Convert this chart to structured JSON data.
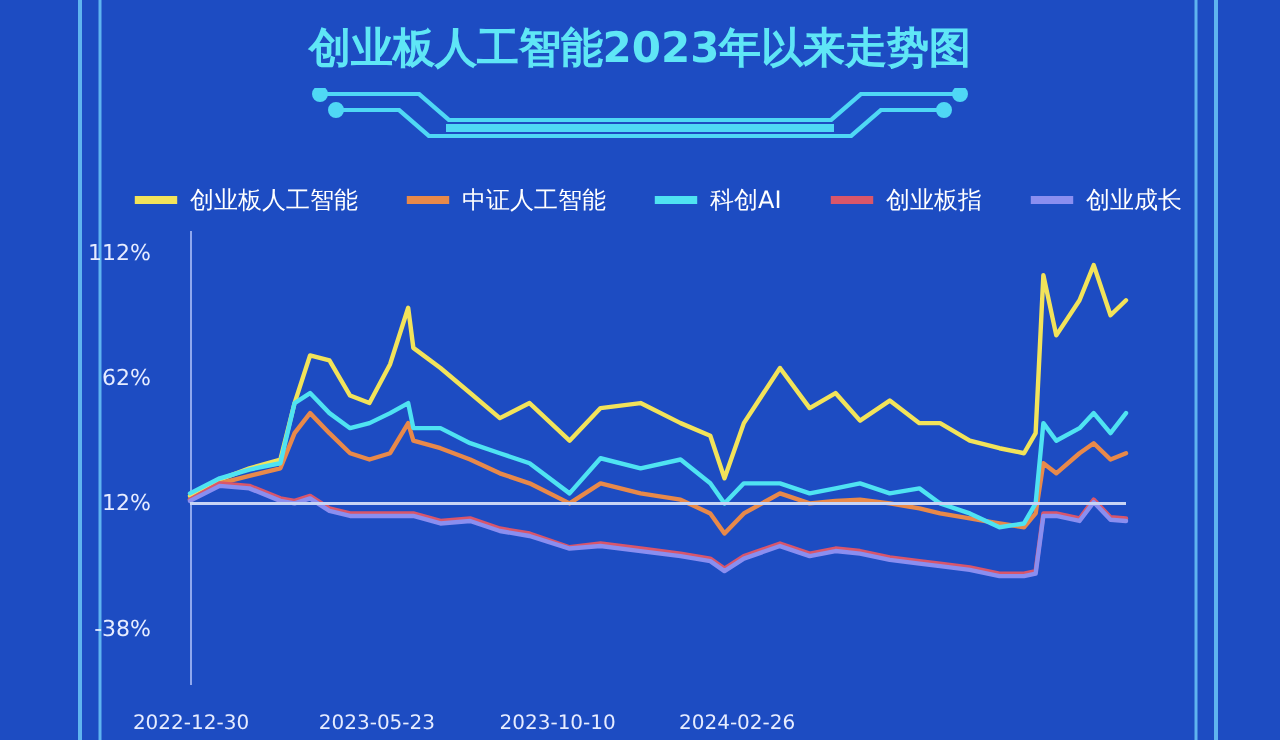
{
  "chart_data": {
    "type": "line",
    "title": "创业板人工智能2023年以来走势图",
    "x": [
      "2022-12-30",
      "2023-01-22",
      "2023-02-14",
      "2023-03-10",
      "2023-03-21",
      "2023-04-02",
      "2023-04-17",
      "2023-05-03",
      "2023-05-18",
      "2023-06-03",
      "2023-06-17",
      "2023-06-21",
      "2023-07-12",
      "2023-08-04",
      "2023-08-27",
      "2023-09-19",
      "2023-10-20",
      "2023-11-13",
      "2023-12-14",
      "2024-01-14",
      "2024-02-06",
      "2024-02-17",
      "2024-03-03",
      "2024-03-31",
      "2024-04-23",
      "2024-05-13",
      "2024-06-01",
      "2024-06-24",
      "2024-07-17",
      "2024-08-02",
      "2024-08-25",
      "2024-09-17",
      "2024-10-06",
      "2024-10-15",
      "2024-10-21",
      "2024-10-31",
      "2024-11-18",
      "2024-11-29",
      "2024-12-12",
      "2024-12-24"
    ],
    "series": [
      {
        "name": "创业板人工智能",
        "color": "#f2e35a",
        "values": [
          15,
          21.5,
          26,
          29.5,
          52,
          71,
          69,
          55,
          52,
          67.5,
          90,
          74,
          66,
          56,
          46,
          52,
          37,
          50,
          52,
          44,
          39,
          22,
          44,
          66,
          50,
          56,
          45,
          53,
          44,
          44,
          37,
          34,
          32,
          40,
          103,
          79,
          93,
          107,
          87,
          93
        ]
      },
      {
        "name": "中证人工智能",
        "color": "#e8894a",
        "values": [
          13.5,
          20,
          23,
          26,
          40,
          48,
          40,
          32,
          29.5,
          32,
          44,
          37,
          34,
          29.5,
          24,
          20,
          12,
          20,
          16,
          13.5,
          8,
          0,
          8,
          16,
          12,
          13,
          13.5,
          12,
          10,
          8,
          6,
          4,
          2.5,
          8,
          28,
          24,
          32,
          36,
          29.5,
          32
        ]
      },
      {
        "name": "科创AI",
        "color": "#4fe3f2",
        "values": [
          16,
          22,
          25.5,
          28,
          52,
          56,
          48,
          42,
          44,
          48,
          52,
          42,
          42,
          36,
          32,
          28,
          16,
          30,
          26,
          29.5,
          20,
          12,
          20,
          20,
          16,
          18,
          20,
          16,
          18,
          12,
          8,
          2.5,
          4,
          12,
          44,
          37,
          42,
          48,
          40,
          48
        ]
      },
      {
        "name": "创业板指",
        "color": "#d9566a",
        "values": [
          13.5,
          20,
          19,
          14,
          13,
          15,
          10,
          8,
          8,
          8,
          8,
          8,
          5,
          6,
          2,
          0,
          -5.5,
          -4,
          -6,
          -8,
          -10,
          -14,
          -9,
          -4,
          -8,
          -6,
          -7,
          -9.5,
          -11,
          -12,
          -13.5,
          -16,
          -16,
          -15,
          8,
          8,
          6,
          13.5,
          6.5,
          6
        ]
      },
      {
        "name": "创业成长",
        "color": "#8a8ef0",
        "values": [
          13,
          19,
          18,
          13,
          12,
          14,
          9,
          7,
          7,
          7,
          7,
          7,
          4,
          5,
          1,
          -1,
          -6,
          -5,
          -7,
          -9,
          -11,
          -15,
          -10,
          -5,
          -9,
          -7,
          -8,
          -10.5,
          -12,
          -13,
          -14.5,
          -17,
          -17,
          -16,
          7,
          7,
          5,
          12.5,
          5.5,
          5
        ]
      }
    ],
    "xlim": [
      "2022-12-30",
      "2024-12-24"
    ],
    "xticks": [
      "2022-12-30",
      "2023-05-23",
      "2023-10-10",
      "2024-02-26"
    ],
    "ylim": [
      -60,
      121
    ],
    "yticks": [
      {
        "value": 112,
        "label": "112%"
      },
      {
        "value": 62,
        "label": "62%"
      },
      {
        "value": 12,
        "label": "12%"
      },
      {
        "value": -38,
        "label": "-38%"
      }
    ],
    "ref_lines": [
      {
        "axis": "y",
        "value": 12,
        "color": "#c8d4f5"
      }
    ],
    "legend": "top",
    "grid": false,
    "marker": "none",
    "line_style": "solid"
  }
}
